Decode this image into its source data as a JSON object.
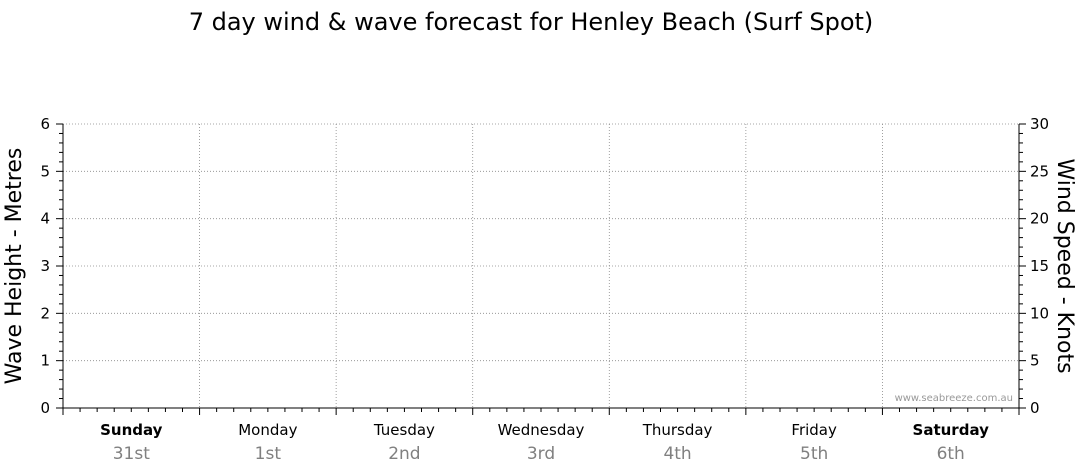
{
  "chart_data": {
    "type": "line",
    "title": "7 day wind & wave forecast for Henley Beach  (Surf Spot)",
    "ylabel_left": "Wave Height - Metres",
    "ylabel_right": "Wind Speed - Knots",
    "ylim_left": [
      0,
      6
    ],
    "ylim_right": [
      0,
      30
    ],
    "yticks_left": [
      "0",
      "1",
      "2",
      "3",
      "4",
      "5",
      "6"
    ],
    "yticks_right": [
      "0",
      "5",
      "10",
      "15",
      "20",
      "25",
      "30"
    ],
    "grid": true,
    "days": [
      {
        "day": "Sunday",
        "date": "31st",
        "bold": true
      },
      {
        "day": "Monday",
        "date": "1st",
        "bold": false
      },
      {
        "day": "Tuesday",
        "date": "2nd",
        "bold": false
      },
      {
        "day": "Wednesday",
        "date": "3rd",
        "bold": false
      },
      {
        "day": "Thursday",
        "date": "4th",
        "bold": false
      },
      {
        "day": "Friday",
        "date": "5th",
        "bold": false
      },
      {
        "day": "Saturday",
        "date": "6th",
        "bold": true
      }
    ],
    "series": [],
    "watermark": "www.seabreeze.com.au"
  }
}
